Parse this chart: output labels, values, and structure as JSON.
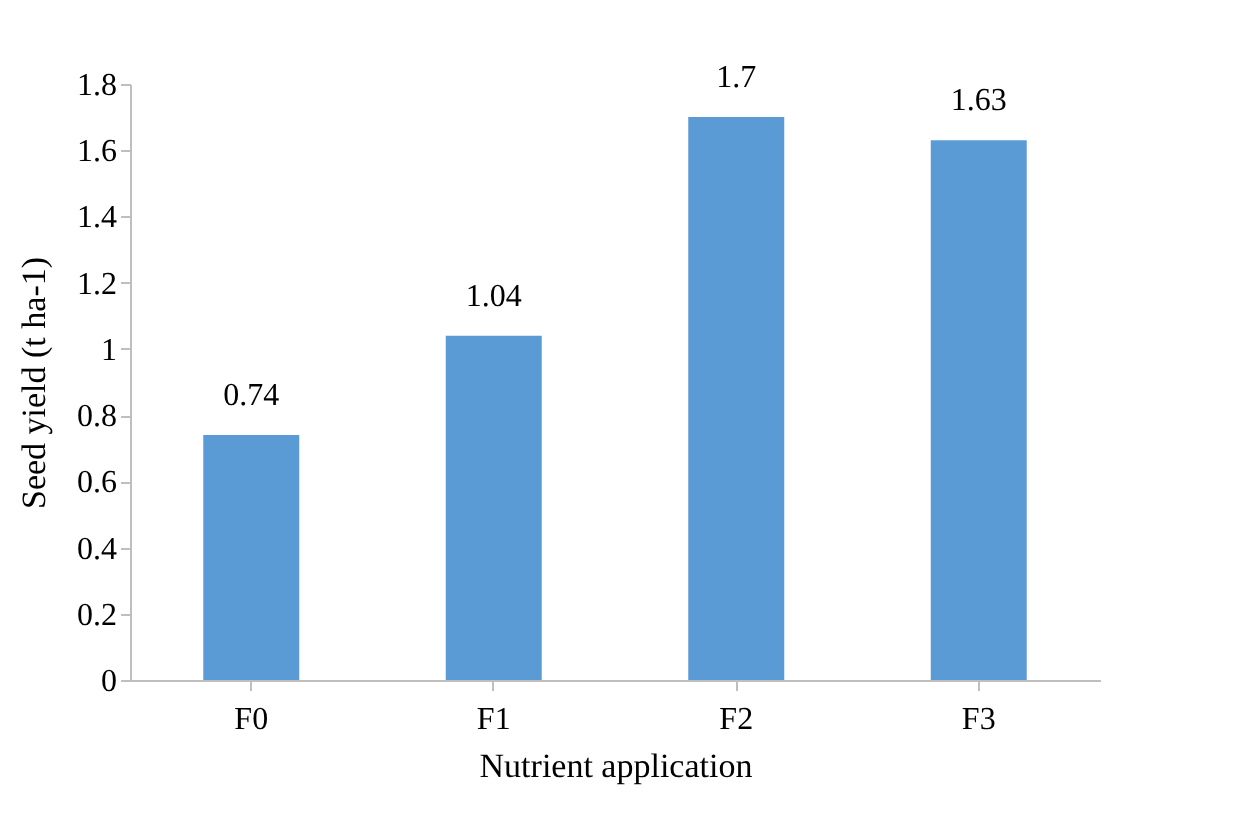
{
  "chart_data": {
    "type": "bar",
    "categories": [
      "F0",
      "F1",
      "F2",
      "F3"
    ],
    "values": [
      0.74,
      1.04,
      1.7,
      1.63
    ],
    "color": "#5b9bd5",
    "xlabel": "Nutrient application",
    "ylabel": "Seed yield (t ha-1)",
    "ylim": [
      0,
      1.8
    ],
    "yticks": [
      0,
      0.2,
      0.4,
      0.6,
      0.8,
      1,
      1.2,
      1.4,
      1.6,
      1.8
    ],
    "data_labels": true,
    "grid": false
  }
}
